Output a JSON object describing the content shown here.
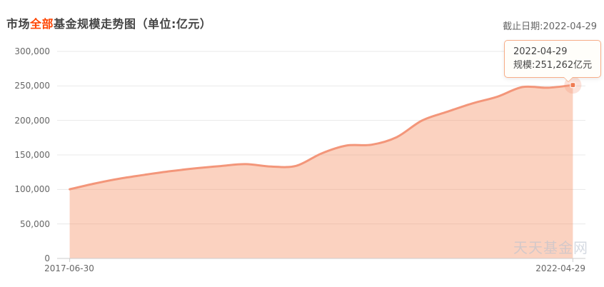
{
  "header": {
    "title_prefix": "市场",
    "title_highlight": "全部",
    "title_suffix": "基金规模走势图（单位:亿元）",
    "cutoff_label": "截止日期:2022-04-29"
  },
  "tooltip": {
    "date": "2022-04-29",
    "value_line": "规模:251,262亿元"
  },
  "watermark": "天天基金网",
  "colors": {
    "title_highlight": "#ff4400",
    "line": "#f3967a",
    "fill": "rgba(245,148,105,0.42)",
    "grid": "#e8e8e8",
    "axis": "#cccccc",
    "marker": "#ef7b52",
    "marker_halo": "rgba(243,150,122,0.28)",
    "tooltip_border": "#f7ad87"
  },
  "chart_data": {
    "type": "area",
    "title": "市场全部基金规模走势图（单位:亿元）",
    "series_name": "规模",
    "unit": "亿元",
    "smooth": true,
    "grid": true,
    "legend_position": "none",
    "x": [
      "2017-06-30",
      "2017-09-30",
      "2017-12-31",
      "2018-03-31",
      "2018-06-30",
      "2018-09-30",
      "2018-12-31",
      "2019-03-31",
      "2019-06-30",
      "2019-09-30",
      "2019-12-31",
      "2020-03-31",
      "2020-06-30",
      "2020-09-30",
      "2020-12-31",
      "2021-03-31",
      "2021-06-30",
      "2021-09-30",
      "2021-12-31",
      "2022-03-31",
      "2022-04-29"
    ],
    "values": [
      100234,
      108600,
      115800,
      121300,
      126400,
      130600,
      133900,
      136700,
      133100,
      134200,
      152000,
      163500,
      164800,
      175800,
      199800,
      212500,
      224600,
      234400,
      248400,
      247300,
      251262
    ],
    "xlabel": "",
    "ylabel": "",
    "ylim": [
      0,
      300000
    ],
    "ytick_labels": [
      "300,000",
      "250,000",
      "200,000",
      "150,000",
      "100,000",
      "50,000",
      "0"
    ],
    "xtick_labels": [
      "2017-06-30",
      "2022-04-29"
    ],
    "last_point": {
      "date": "2022-04-29",
      "value": 251262,
      "value_formatted": "251,262"
    }
  }
}
